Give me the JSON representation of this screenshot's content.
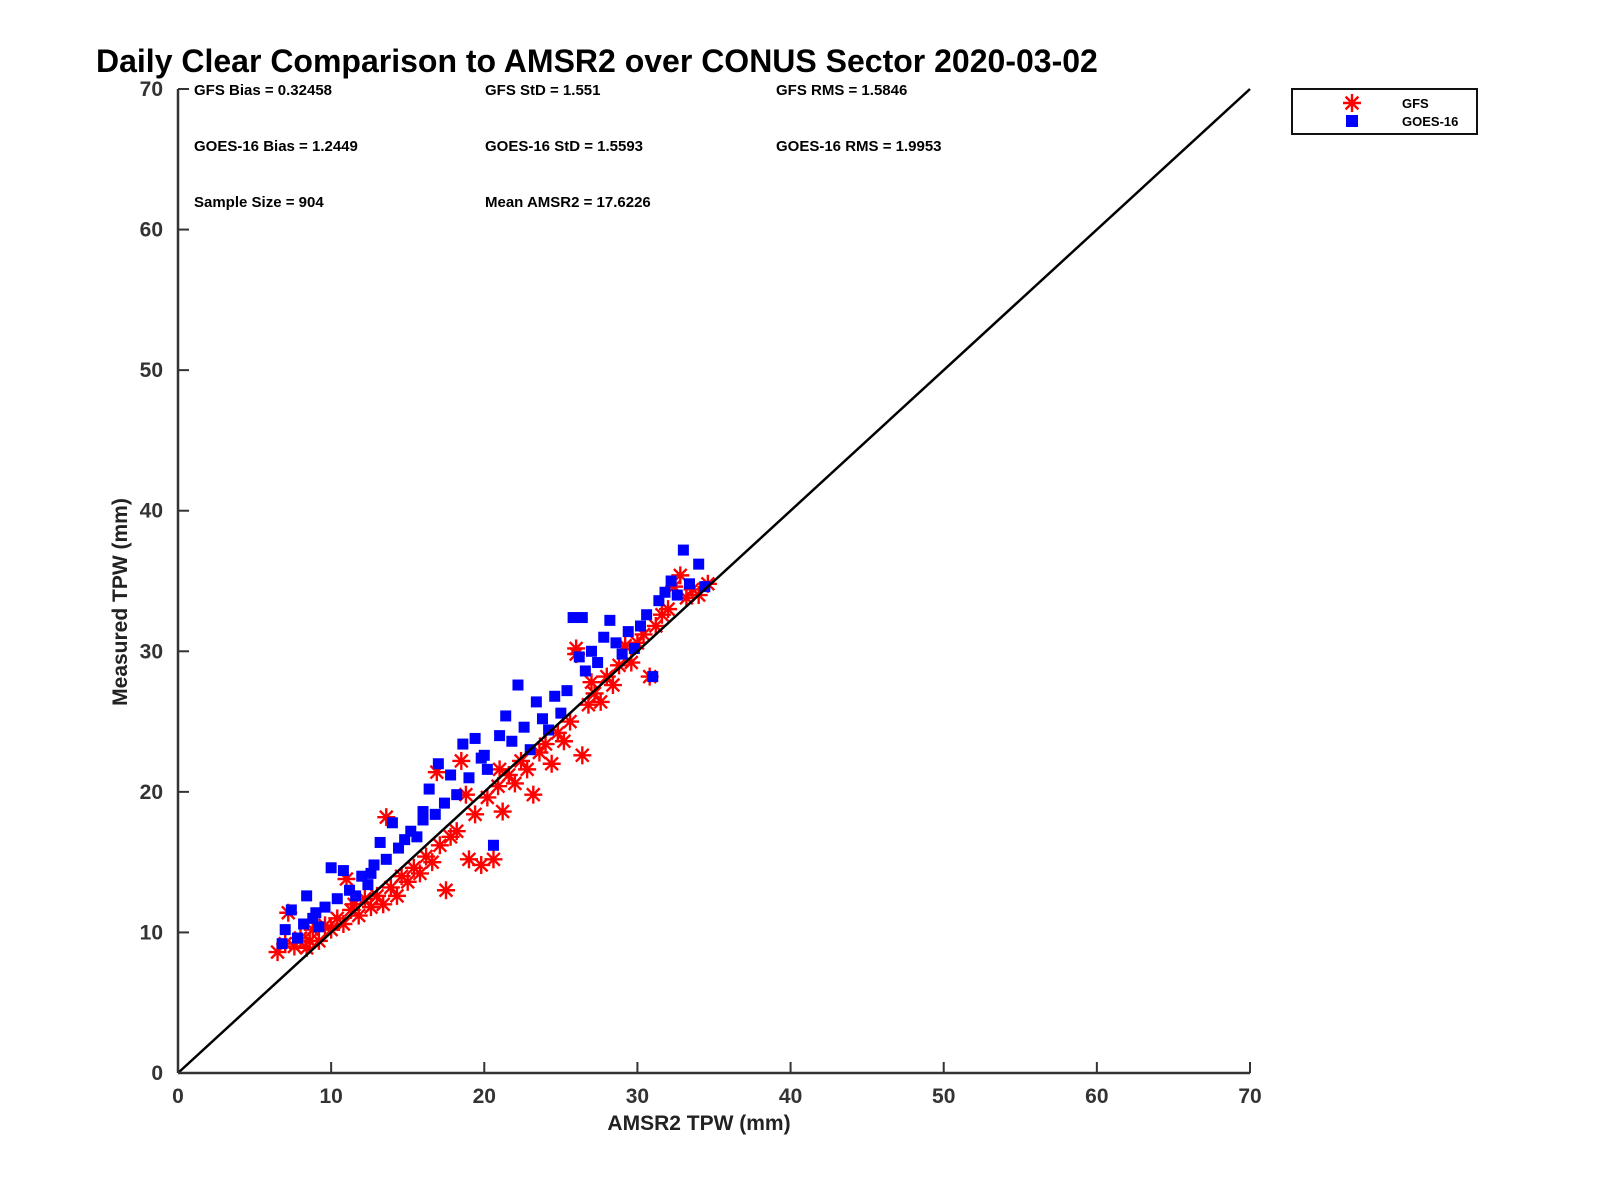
{
  "chart_data": {
    "type": "scatter",
    "title": "Daily Clear Comparison to AMSR2 over CONUS Sector 2020-03-02",
    "xlabel": "AMSR2 TPW (mm)",
    "ylabel": "Measured TPW (mm)",
    "xlim": [
      0,
      70
    ],
    "ylim": [
      0,
      70
    ],
    "xticks": [
      0,
      10,
      20,
      30,
      40,
      50,
      60,
      70
    ],
    "yticks": [
      0,
      10,
      20,
      30,
      40,
      50,
      60,
      70
    ],
    "grid": false,
    "legend_position": "top-right, outside plot",
    "reference_line": {
      "from": [
        0,
        0
      ],
      "to": [
        70,
        70
      ],
      "color": "#000000"
    },
    "stats": [
      [
        "GFS Bias = 0.32458",
        "GFS StD = 1.551",
        "GFS RMS = 1.5846"
      ],
      [
        "GOES-16 Bias = 1.2449",
        "GOES-16 StD = 1.5593",
        "GOES-16 RMS = 1.9953"
      ],
      [
        "Sample Size = 904",
        "Mean AMSR2 = 17.6226",
        ""
      ]
    ],
    "series": [
      {
        "name": "GFS",
        "marker": "asterisk",
        "color": "#ff0000",
        "points": [
          [
            6.5,
            8.6
          ],
          [
            7.0,
            9.2
          ],
          [
            7.2,
            11.4
          ],
          [
            7.6,
            9.0
          ],
          [
            8.0,
            9.6
          ],
          [
            8.4,
            8.9
          ],
          [
            8.8,
            10.2
          ],
          [
            9.2,
            9.4
          ],
          [
            9.6,
            10.5
          ],
          [
            10.0,
            10.2
          ],
          [
            10.4,
            11.0
          ],
          [
            10.8,
            10.6
          ],
          [
            11.0,
            13.8
          ],
          [
            11.3,
            11.6
          ],
          [
            11.8,
            11.2
          ],
          [
            12.2,
            12.4
          ],
          [
            12.6,
            11.8
          ],
          [
            13.0,
            12.6
          ],
          [
            13.4,
            12.0
          ],
          [
            13.6,
            18.2
          ],
          [
            13.9,
            13.2
          ],
          [
            14.3,
            12.6
          ],
          [
            14.6,
            14.0
          ],
          [
            15.0,
            13.6
          ],
          [
            15.4,
            14.6
          ],
          [
            15.8,
            14.2
          ],
          [
            16.2,
            15.4
          ],
          [
            16.6,
            15.0
          ],
          [
            16.9,
            21.4
          ],
          [
            17.1,
            16.2
          ],
          [
            17.5,
            13.0
          ],
          [
            17.8,
            16.8
          ],
          [
            18.2,
            17.2
          ],
          [
            18.5,
            22.2
          ],
          [
            18.8,
            19.8
          ],
          [
            19.0,
            15.2
          ],
          [
            19.4,
            18.4
          ],
          [
            19.8,
            14.8
          ],
          [
            20.2,
            19.6
          ],
          [
            20.6,
            15.2
          ],
          [
            20.9,
            20.4
          ],
          [
            21.2,
            18.6
          ],
          [
            21.6,
            21.2
          ],
          [
            22.0,
            20.6
          ],
          [
            22.4,
            22.2
          ],
          [
            22.8,
            21.6
          ],
          [
            23.2,
            19.8
          ],
          [
            23.6,
            22.8
          ],
          [
            24.0,
            23.4
          ],
          [
            24.4,
            22.0
          ],
          [
            24.8,
            24.2
          ],
          [
            25.2,
            23.6
          ],
          [
            25.6,
            25.0
          ],
          [
            26.0,
            29.8
          ],
          [
            26.4,
            22.6
          ],
          [
            26.8,
            26.2
          ],
          [
            27.2,
            27.0
          ],
          [
            27.6,
            26.4
          ],
          [
            28.0,
            28.2
          ],
          [
            28.4,
            27.6
          ],
          [
            28.8,
            29.0
          ],
          [
            29.2,
            30.4
          ],
          [
            29.6,
            29.2
          ],
          [
            30.0,
            30.6
          ],
          [
            30.4,
            31.2
          ],
          [
            30.8,
            28.2
          ],
          [
            31.2,
            31.8
          ],
          [
            31.6,
            32.6
          ],
          [
            32.0,
            33.0
          ],
          [
            32.4,
            34.6
          ],
          [
            32.8,
            35.4
          ],
          [
            33.2,
            33.8
          ],
          [
            33.6,
            34.4
          ],
          [
            34.0,
            34.0
          ],
          [
            34.6,
            34.8
          ],
          [
            26.0,
            30.2
          ],
          [
            21.0,
            21.6
          ],
          [
            11.5,
            12.0
          ],
          [
            8.6,
            9.4
          ],
          [
            27.0,
            27.8
          ]
        ]
      },
      {
        "name": "GOES-16",
        "marker": "square",
        "color": "#0000ff",
        "points": [
          [
            6.8,
            9.2
          ],
          [
            7.0,
            10.2
          ],
          [
            7.4,
            11.6
          ],
          [
            7.8,
            9.6
          ],
          [
            8.2,
            10.6
          ],
          [
            8.4,
            12.6
          ],
          [
            8.8,
            11.0
          ],
          [
            9.2,
            10.4
          ],
          [
            9.6,
            11.8
          ],
          [
            10.0,
            14.6
          ],
          [
            10.4,
            12.4
          ],
          [
            10.8,
            14.4
          ],
          [
            11.2,
            13.0
          ],
          [
            11.6,
            12.6
          ],
          [
            12.0,
            14.0
          ],
          [
            12.4,
            13.4
          ],
          [
            12.8,
            14.8
          ],
          [
            13.2,
            16.4
          ],
          [
            13.6,
            15.2
          ],
          [
            14.0,
            17.8
          ],
          [
            14.4,
            16.0
          ],
          [
            14.8,
            16.6
          ],
          [
            15.2,
            17.2
          ],
          [
            15.6,
            16.8
          ],
          [
            16.0,
            18.0
          ],
          [
            16.4,
            20.2
          ],
          [
            16.8,
            18.4
          ],
          [
            17.0,
            22.0
          ],
          [
            17.4,
            19.2
          ],
          [
            17.8,
            21.2
          ],
          [
            18.2,
            19.8
          ],
          [
            18.6,
            23.4
          ],
          [
            19.0,
            21.0
          ],
          [
            19.4,
            23.8
          ],
          [
            19.8,
            22.4
          ],
          [
            20.2,
            21.6
          ],
          [
            20.6,
            16.2
          ],
          [
            21.0,
            24.0
          ],
          [
            21.4,
            25.4
          ],
          [
            21.8,
            23.6
          ],
          [
            22.2,
            27.6
          ],
          [
            22.6,
            24.6
          ],
          [
            23.0,
            23.0
          ],
          [
            23.4,
            26.4
          ],
          [
            23.8,
            25.2
          ],
          [
            24.2,
            24.4
          ],
          [
            24.6,
            26.8
          ],
          [
            25.0,
            25.6
          ],
          [
            25.4,
            27.2
          ],
          [
            25.8,
            32.4
          ],
          [
            26.2,
            29.6
          ],
          [
            26.6,
            28.6
          ],
          [
            27.0,
            30.0
          ],
          [
            27.4,
            29.2
          ],
          [
            27.8,
            31.0
          ],
          [
            28.2,
            32.2
          ],
          [
            28.6,
            30.6
          ],
          [
            29.0,
            29.8
          ],
          [
            29.4,
            31.4
          ],
          [
            29.8,
            30.2
          ],
          [
            30.2,
            31.8
          ],
          [
            30.6,
            32.6
          ],
          [
            31.0,
            28.2
          ],
          [
            31.4,
            33.6
          ],
          [
            31.8,
            34.2
          ],
          [
            32.2,
            35.0
          ],
          [
            32.6,
            34.0
          ],
          [
            33.0,
            37.2
          ],
          [
            33.4,
            34.8
          ],
          [
            34.0,
            36.2
          ],
          [
            34.4,
            34.6
          ],
          [
            26.4,
            32.4
          ],
          [
            16.0,
            18.6
          ],
          [
            12.6,
            14.2
          ],
          [
            9.0,
            11.4
          ],
          [
            20.0,
            22.6
          ]
        ]
      }
    ]
  }
}
